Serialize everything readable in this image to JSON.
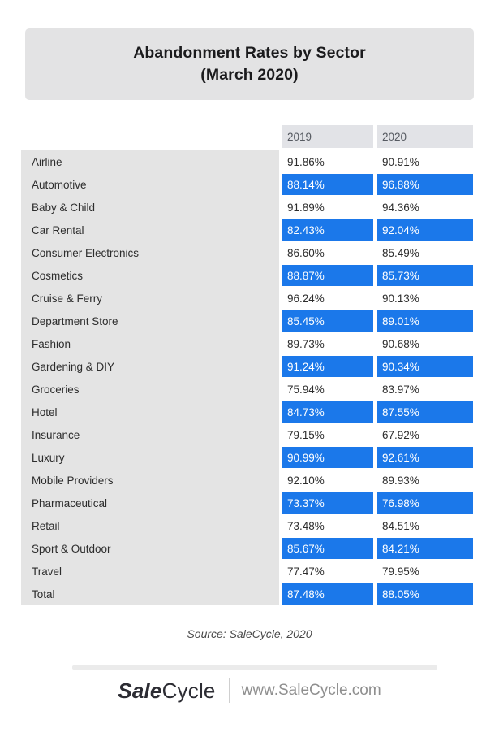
{
  "title": {
    "line1": "Abandonment Rates by Sector",
    "line2": "(March 2020)"
  },
  "table": {
    "columns": [
      "2019",
      "2020"
    ],
    "rows": [
      {
        "sector": "Airline",
        "v2019": "91.86%",
        "v2020": "90.91%",
        "highlighted": false
      },
      {
        "sector": "Automotive",
        "v2019": "88.14%",
        "v2020": "96.88%",
        "highlighted": true
      },
      {
        "sector": "Baby & Child",
        "v2019": "91.89%",
        "v2020": "94.36%",
        "highlighted": false
      },
      {
        "sector": "Car Rental",
        "v2019": "82.43%",
        "v2020": "92.04%",
        "highlighted": true
      },
      {
        "sector": "Consumer Electronics",
        "v2019": "86.60%",
        "v2020": "85.49%",
        "highlighted": false
      },
      {
        "sector": "Cosmetics",
        "v2019": "88.87%",
        "v2020": "85.73%",
        "highlighted": true
      },
      {
        "sector": "Cruise & Ferry",
        "v2019": "96.24%",
        "v2020": "90.13%",
        "highlighted": false
      },
      {
        "sector": "Department Store",
        "v2019": "85.45%",
        "v2020": "89.01%",
        "highlighted": true
      },
      {
        "sector": "Fashion",
        "v2019": "89.73%",
        "v2020": "90.68%",
        "highlighted": false
      },
      {
        "sector": "Gardening & DIY",
        "v2019": "91.24%",
        "v2020": "90.34%",
        "highlighted": true
      },
      {
        "sector": "Groceries",
        "v2019": "75.94%",
        "v2020": "83.97%",
        "highlighted": false
      },
      {
        "sector": "Hotel",
        "v2019": "84.73%",
        "v2020": "87.55%",
        "highlighted": true
      },
      {
        "sector": "Insurance",
        "v2019": "79.15%",
        "v2020": "67.92%",
        "highlighted": false
      },
      {
        "sector": "Luxury",
        "v2019": "90.99%",
        "v2020": "92.61%",
        "highlighted": true
      },
      {
        "sector": "Mobile Providers",
        "v2019": "92.10%",
        "v2020": "89.93%",
        "highlighted": false
      },
      {
        "sector": "Pharmaceutical",
        "v2019": "73.37%",
        "v2020": "76.98%",
        "highlighted": true
      },
      {
        "sector": "Retail",
        "v2019": "73.48%",
        "v2020": "84.51%",
        "highlighted": false
      },
      {
        "sector": "Sport & Outdoor",
        "v2019": "85.67%",
        "v2020": "84.21%",
        "highlighted": true
      },
      {
        "sector": "Travel",
        "v2019": "77.47%",
        "v2020": "79.95%",
        "highlighted": false
      },
      {
        "sector": "Total",
        "v2019": "87.48%",
        "v2020": "88.05%",
        "highlighted": true
      }
    ]
  },
  "chart_data": {
    "type": "table",
    "title": "Abandonment Rates by Sector (March 2020)",
    "unit": "%",
    "categories": [
      "Airline",
      "Automotive",
      "Baby & Child",
      "Car Rental",
      "Consumer Electronics",
      "Cosmetics",
      "Cruise & Ferry",
      "Department Store",
      "Fashion",
      "Gardening & DIY",
      "Groceries",
      "Hotel",
      "Insurance",
      "Luxury",
      "Mobile Providers",
      "Pharmaceutical",
      "Retail",
      "Sport & Outdoor",
      "Travel",
      "Total"
    ],
    "series": [
      {
        "name": "2019",
        "values": [
          91.86,
          88.14,
          91.89,
          82.43,
          86.6,
          88.87,
          96.24,
          85.45,
          89.73,
          91.24,
          75.94,
          84.73,
          79.15,
          90.99,
          92.1,
          73.37,
          73.48,
          85.67,
          77.47,
          87.48
        ]
      },
      {
        "name": "2020",
        "values": [
          90.91,
          96.88,
          94.36,
          92.04,
          85.49,
          85.73,
          90.13,
          89.01,
          90.68,
          90.34,
          83.97,
          87.55,
          67.92,
          92.61,
          89.93,
          76.98,
          84.51,
          84.21,
          79.95,
          88.05
        ]
      }
    ],
    "layout": "alternating rows highlighted in blue"
  },
  "source": "Source: SaleCycle, 2020",
  "footer": {
    "logo_bold": "Sale",
    "logo_regular": "Cycle",
    "website": "www.SaleCycle.com"
  },
  "colors": {
    "highlight_blue": "#1b78ea",
    "row_panel_gray": "#e4e4e4",
    "header_gray": "#e2e3e7",
    "title_box_gray": "#e3e3e4",
    "highlight_text": "#ffffff",
    "body_text": "#2d2d2d"
  }
}
